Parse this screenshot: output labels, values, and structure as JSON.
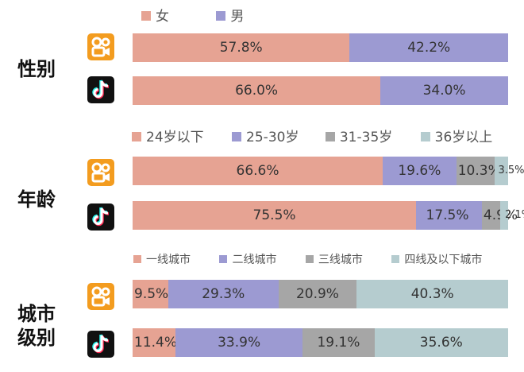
{
  "colors": {
    "c1": "#e6a393",
    "c2": "#9c9ad2",
    "c3": "#a6a6a6",
    "c4": "#b5cccf"
  },
  "apps": {
    "kuaishou_icon": "kuaishou-icon",
    "douyin_icon": "douyin-icon"
  },
  "chart_data": [
    {
      "type": "bar",
      "group_label": "性别",
      "stacked": "percent",
      "categories": [
        "快手",
        "抖音"
      ],
      "legend": [
        "女",
        "男"
      ],
      "series": [
        {
          "name": "女",
          "values": [
            57.8,
            66.0
          ],
          "labels": [
            "57.8%",
            "66.0%"
          ]
        },
        {
          "name": "男",
          "values": [
            42.2,
            34.0
          ],
          "labels": [
            "42.2%",
            "34.0%"
          ]
        }
      ]
    },
    {
      "type": "bar",
      "group_label": "年龄",
      "stacked": "percent",
      "categories": [
        "快手",
        "抖音"
      ],
      "legend": [
        "24岁以下",
        "25-30岁",
        "31-35岁",
        "36岁以上"
      ],
      "series": [
        {
          "name": "24岁以下",
          "values": [
            66.6,
            75.5
          ],
          "labels": [
            "66.6%",
            "75.5%"
          ]
        },
        {
          "name": "25-30岁",
          "values": [
            19.6,
            17.5
          ],
          "labels": [
            "19.6%",
            "17.5%"
          ]
        },
        {
          "name": "31-35岁",
          "values": [
            10.3,
            4.9
          ],
          "labels": [
            "10.3%",
            "4.9%"
          ]
        },
        {
          "name": "36岁以上",
          "values": [
            3.5,
            2.1
          ],
          "labels": [
            "3.5%",
            "2.1%"
          ]
        }
      ]
    },
    {
      "type": "bar",
      "group_label": "城市级别",
      "stacked": "percent",
      "categories": [
        "快手",
        "抖音"
      ],
      "legend": [
        "一线城市",
        "二线城市",
        "三线城市",
        "四线及以下城市"
      ],
      "series": [
        {
          "name": "一线城市",
          "values": [
            9.5,
            11.4
          ],
          "labels": [
            "9.5%",
            "11.4%"
          ]
        },
        {
          "name": "二线城市",
          "values": [
            29.3,
            33.9
          ],
          "labels": [
            "29.3%",
            "33.9%"
          ]
        },
        {
          "name": "三线城市",
          "values": [
            20.9,
            19.1
          ],
          "labels": [
            "20.9%",
            "19.1%"
          ]
        },
        {
          "name": "四线及以下城市",
          "values": [
            40.3,
            35.6
          ],
          "labels": [
            "40.3%",
            "35.6%"
          ]
        }
      ]
    }
  ]
}
